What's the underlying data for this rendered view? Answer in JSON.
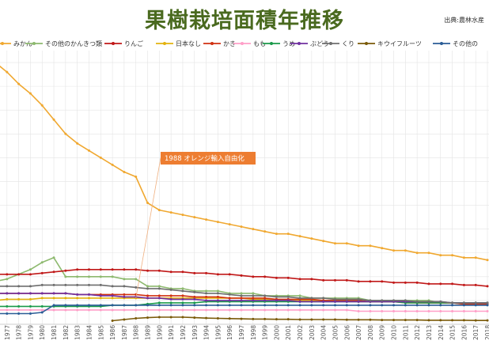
{
  "page": {
    "title": "果樹栽培面積年推移",
    "source": "出典:農林水産"
  },
  "annotation": {
    "text": "1988 オレンジ輸入自由化",
    "year": 1988,
    "series": "日本なし"
  },
  "chart_data": {
    "type": "line",
    "title": "果樹栽培面積年推移",
    "xlabel": "",
    "ylabel": "",
    "x": [
      1976,
      1977,
      1978,
      1979,
      1980,
      1981,
      1982,
      1983,
      1984,
      1985,
      1986,
      1987,
      1988,
      1989,
      1990,
      1991,
      1992,
      1993,
      1994,
      1995,
      1996,
      1997,
      1998,
      1999,
      2000,
      2001,
      2002,
      2003,
      2004,
      2005,
      2006,
      2007,
      2008,
      2009,
      2010,
      2011,
      2012,
      2013,
      2014,
      2015,
      2016,
      2017,
      2018
    ],
    "xlim": [
      1976,
      2018
    ],
    "ylim": [
      0,
      115
    ],
    "grid": true,
    "legend_position": "top",
    "series": [
      {
        "name": "みかん",
        "color": "#f0a830",
        "values": [
          110,
          106,
          101,
          97,
          92,
          86,
          80,
          76,
          73,
          70,
          67,
          64,
          62,
          51,
          48,
          47,
          46,
          45,
          44,
          43,
          42,
          41,
          40,
          39,
          38,
          38,
          37,
          36,
          35,
          34,
          34,
          33,
          33,
          32,
          31,
          31,
          30,
          30,
          29,
          29,
          28,
          28,
          27
        ]
      },
      {
        "name": "その他のかんきつ類",
        "color": "#8db96e",
        "values": [
          18,
          19,
          21,
          23,
          26,
          28,
          20,
          20,
          20,
          20,
          20,
          19,
          19,
          16,
          16,
          15,
          15,
          14,
          14,
          14,
          13,
          13,
          13,
          12,
          12,
          12,
          12,
          11,
          11,
          11,
          11,
          11,
          10,
          10,
          10,
          10,
          10,
          10,
          9,
          9,
          9,
          9,
          9
        ]
      },
      {
        "name": "りんご",
        "color": "#c01818",
        "values": [
          21,
          21,
          21,
          21,
          21.5,
          22,
          22.5,
          23,
          23,
          23,
          23,
          23,
          23,
          22.5,
          22.5,
          22,
          22,
          21.5,
          21.5,
          21,
          21,
          20.5,
          20,
          20,
          19.5,
          19.5,
          19,
          19,
          18.5,
          18.5,
          18.5,
          18,
          18,
          18,
          17.5,
          17.5,
          17.5,
          17,
          17,
          17,
          16.5,
          16.5,
          16
        ]
      },
      {
        "name": "日本なし",
        "color": "#e3b20e",
        "values": [
          10,
          10.5,
          10.5,
          10.5,
          11,
          11,
          11,
          11,
          11,
          11,
          11,
          11,
          11,
          11,
          11,
          11,
          11,
          11,
          11,
          11,
          11,
          11,
          10.5,
          10.5,
          10.5,
          10,
          10,
          10,
          10,
          10,
          10,
          9.5,
          9.5,
          9.5,
          9.5,
          9,
          9,
          9,
          9,
          9,
          8.5,
          8.5,
          8.5
        ]
      },
      {
        "name": "かき",
        "color": "#d03010",
        "values": [
          13,
          13,
          13,
          13,
          13,
          13,
          13,
          12.5,
          12.5,
          12.5,
          12.5,
          12.5,
          12.5,
          12,
          12,
          12,
          12,
          11.5,
          11.5,
          11.5,
          11,
          11,
          11,
          11,
          10.5,
          10.5,
          10.5,
          10.5,
          10,
          10,
          10,
          10,
          9.5,
          9.5,
          9.5,
          9.5,
          9,
          9,
          9,
          9,
          8.5,
          8.5,
          8.5
        ]
      },
      {
        "name": "もも",
        "color": "#ff9fc8",
        "values": [
          6,
          6,
          6,
          6,
          6,
          6,
          6,
          6,
          6,
          6,
          6,
          6,
          6,
          6,
          6,
          6,
          6,
          6,
          6,
          6,
          6,
          6,
          6,
          6,
          6,
          6,
          6,
          6,
          6,
          6,
          6,
          5.5,
          5.5,
          5.5,
          5.5,
          5.5,
          5.5,
          5.5,
          5.5,
          5.5,
          5.5,
          5.5,
          5.5
        ]
      },
      {
        "name": "うめ",
        "color": "#1a9a4a",
        "values": [
          7.5,
          7.5,
          7.5,
          7.5,
          7.5,
          7.5,
          7.5,
          7.5,
          7.5,
          7.5,
          8,
          8,
          8,
          8.5,
          9,
          9,
          9,
          9,
          9.5,
          9.5,
          9.5,
          9.5,
          9.5,
          9.5,
          9.5,
          9.5,
          9.5,
          9.5,
          9.5,
          9.5,
          9.5,
          9.5,
          9.5,
          9.5,
          9.5,
          9,
          9,
          9,
          9,
          9,
          9,
          9,
          9
        ]
      },
      {
        "name": "ぶどう",
        "color": "#7030a0",
        "values": [
          13,
          13,
          13,
          13,
          13,
          13,
          13,
          12.5,
          12.5,
          12,
          12,
          11.5,
          11.5,
          11,
          11,
          10.5,
          10.5,
          10.5,
          10,
          10,
          10,
          10,
          10,
          10,
          10,
          10,
          9.5,
          9.5,
          9.5,
          9.5,
          9.5,
          9.5,
          9.5,
          9.5,
          9.5,
          9.5,
          9.5,
          9.5,
          9.5,
          9,
          9,
          9,
          9
        ]
      },
      {
        "name": "くり",
        "color": "#6e6e6e",
        "values": [
          16,
          16,
          16,
          16,
          16.5,
          16.5,
          16.5,
          16.5,
          16.5,
          16.5,
          16,
          16,
          15.5,
          15,
          15,
          14.5,
          14,
          13.5,
          13,
          13,
          12.5,
          12,
          12,
          12,
          11.5,
          11.5,
          11,
          11,
          11,
          10.5,
          10.5,
          10.5,
          10,
          10,
          10,
          10,
          9.5,
          9.5,
          9.5,
          9,
          9,
          9,
          9
        ]
      },
      {
        "name": "キウイフルーツ",
        "color": "#7a5a08",
        "values": [
          null,
          null,
          null,
          null,
          null,
          null,
          null,
          null,
          null,
          null,
          1.5,
          2,
          2.5,
          2.8,
          3,
          3,
          3,
          2.8,
          2.6,
          2.5,
          2.4,
          2.3,
          2.2,
          2.2,
          2.1,
          2.1,
          2,
          2,
          2,
          2,
          1.9,
          1.9,
          1.9,
          1.8,
          1.8,
          1.8,
          1.8,
          1.7,
          1.7,
          1.7,
          1.7,
          1.6,
          1.6
        ]
      },
      {
        "name": "その他の",
        "color": "#2a5c96",
        "values": [
          4.5,
          4.5,
          4.5,
          4.5,
          5,
          8,
          8,
          8,
          8,
          8,
          8,
          8,
          8,
          8,
          8,
          8,
          8,
          8,
          8,
          8,
          8,
          8,
          8,
          8,
          8,
          8,
          8,
          8,
          8,
          8,
          8,
          8,
          8,
          8,
          8,
          8,
          8,
          8,
          8,
          8,
          8,
          8,
          8
        ]
      }
    ]
  }
}
